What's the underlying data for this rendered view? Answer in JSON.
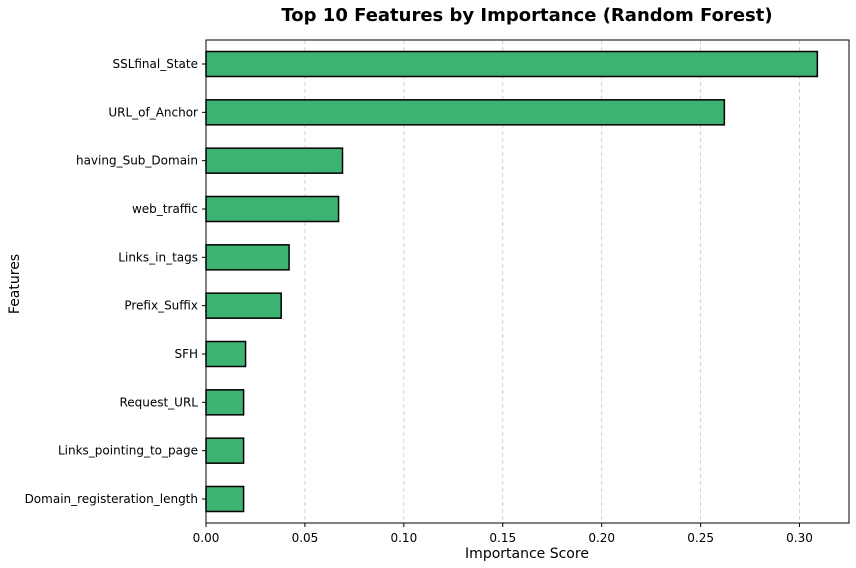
{
  "chart_data": {
    "type": "bar",
    "orientation": "horizontal",
    "title": "Top 10 Features by Importance (Random Forest)",
    "xlabel": "Importance Score",
    "ylabel": "Features",
    "categories": [
      "SSLfinal_State",
      "URL_of_Anchor",
      "having_Sub_Domain",
      "web_traffic",
      "Links_in_tags",
      "Prefix_Suffix",
      "SFH",
      "Request_URL",
      "Links_pointing_to_page",
      "Domain_registeration_length"
    ],
    "values": [
      0.309,
      0.262,
      0.069,
      0.067,
      0.042,
      0.038,
      0.02,
      0.019,
      0.019,
      0.019
    ],
    "xlim": [
      0.0,
      0.325
    ],
    "xticks": [
      "0.00",
      "0.05",
      "0.10",
      "0.15",
      "0.20",
      "0.25",
      "0.30"
    ],
    "grid": "x, dashed",
    "bar_color": "#3cb371",
    "edge_color": "#000000",
    "grid_color": "#c8c8c8"
  }
}
